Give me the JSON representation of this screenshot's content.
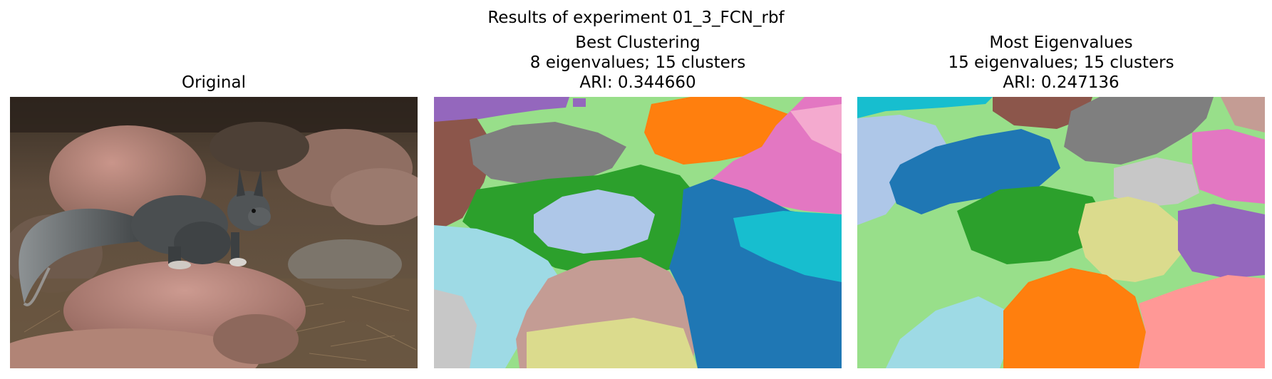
{
  "figure": {
    "suptitle": "Results of experiment 01_3_FCN_rbf"
  },
  "panels": [
    {
      "id": "original",
      "title_lines": [
        "Original"
      ]
    },
    {
      "id": "best",
      "title_lines": [
        "Best Clustering",
        "8 eigenvalues; 15 clusters",
        "ARI: 0.344660"
      ]
    },
    {
      "id": "most",
      "title_lines": [
        "Most Eigenvalues",
        "15 eigenvalues; 15 clusters",
        "ARI: 0.247136"
      ]
    }
  ],
  "palette": {
    "blue": "#1f77b4",
    "light_blue": "#aec7e8",
    "orange": "#ff7f0e",
    "light_orange": "#ffbb78",
    "green": "#2ca02c",
    "light_green": "#98df8a",
    "red": "#d62728",
    "pink_light": "#ff9896",
    "purple": "#9467bd",
    "lavender": "#c5b0d5",
    "brown": "#8c564b",
    "rose_brown": "#c49c94",
    "pink": "#e377c2",
    "pink_pale": "#f7b6d2",
    "gray": "#7f7f7f",
    "silver": "#c7c7c7",
    "olive": "#bcbd22",
    "khaki": "#dbdb8d",
    "cyan": "#17becf",
    "sky": "#9edae5"
  }
}
